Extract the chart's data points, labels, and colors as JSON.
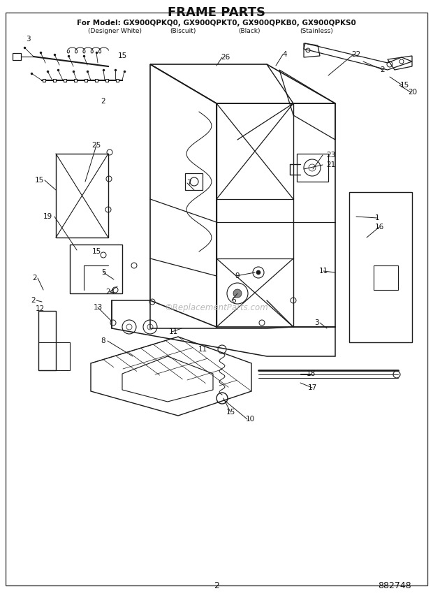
{
  "title": "FRAME PARTS",
  "subtitle": "For Model: GX900QPKQ0, GX900QPKT0, GX900QPKB0, GX900QPKS0",
  "subtitle_parts": [
    "(Designer White)",
    "(Biscuit)",
    "(Black)",
    "(Stainless)"
  ],
  "page_number": "2",
  "part_number": "882748",
  "bg_color": "#ffffff",
  "line_color": "#1a1a1a",
  "text_color": "#111111",
  "watermark": "ReplacementParts.com",
  "figsize": [
    6.2,
    8.56
  ],
  "dpi": 100
}
